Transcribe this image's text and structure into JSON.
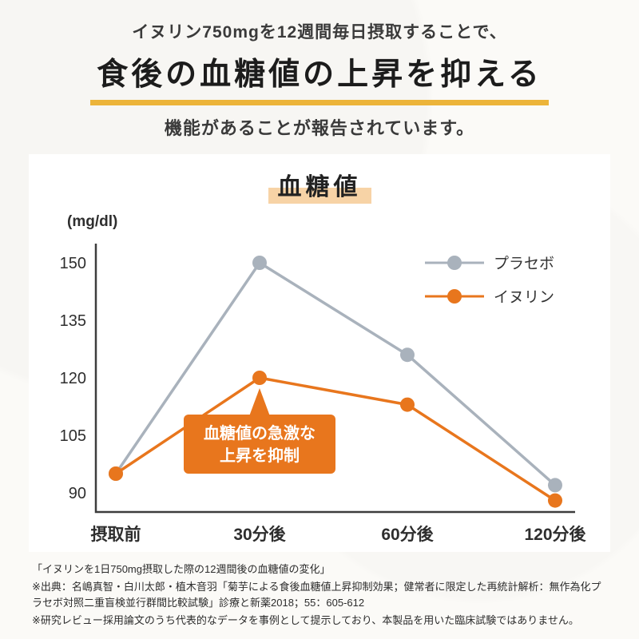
{
  "header": {
    "line1": "イヌリン750mgを12週間毎日摂取することで、",
    "title": "食後の血糖値の上昇を抑える",
    "line3": "機能があることが報告されています。"
  },
  "chart": {
    "title": "血糖値",
    "unit": "(mg/dl)"
  },
  "chart_data": {
    "type": "line",
    "title": "血糖値",
    "ylabel": "(mg/dl)",
    "categories": [
      "摂取前",
      "30分後",
      "60分後",
      "120分後"
    ],
    "series": [
      {
        "name": "プラセボ",
        "color": "#a9b2bc",
        "values": [
          95,
          150,
          126,
          92
        ]
      },
      {
        "name": "イヌリン",
        "color": "#e8761d",
        "values": [
          95,
          120,
          113,
          88
        ]
      }
    ],
    "yticks": [
      150,
      135,
      120,
      105,
      90
    ],
    "ylim": [
      85,
      155
    ],
    "grid": false,
    "legend_position": "top-right",
    "annotation_lines": [
      "血糖値の急激な",
      "上昇を抑制"
    ],
    "annotation_color": "#e8761d"
  },
  "footer": {
    "caption": "「イヌリンを1日750mg摂取した際の12週間後の血糖値の変化」",
    "source": "※出典：名嶋真智・白川太郎・植木音羽「菊芋による食後血糖値上昇抑制効果；健常者に限定した再統計解析：無作為化プラセボ対照二重盲検並行群間比較試験」診療と新薬2018；55：605-612",
    "note": "※研究レビュー採用論文のうち代表的なデータを事例として提示しており、本製品を用いた臨床試験ではありません。"
  }
}
